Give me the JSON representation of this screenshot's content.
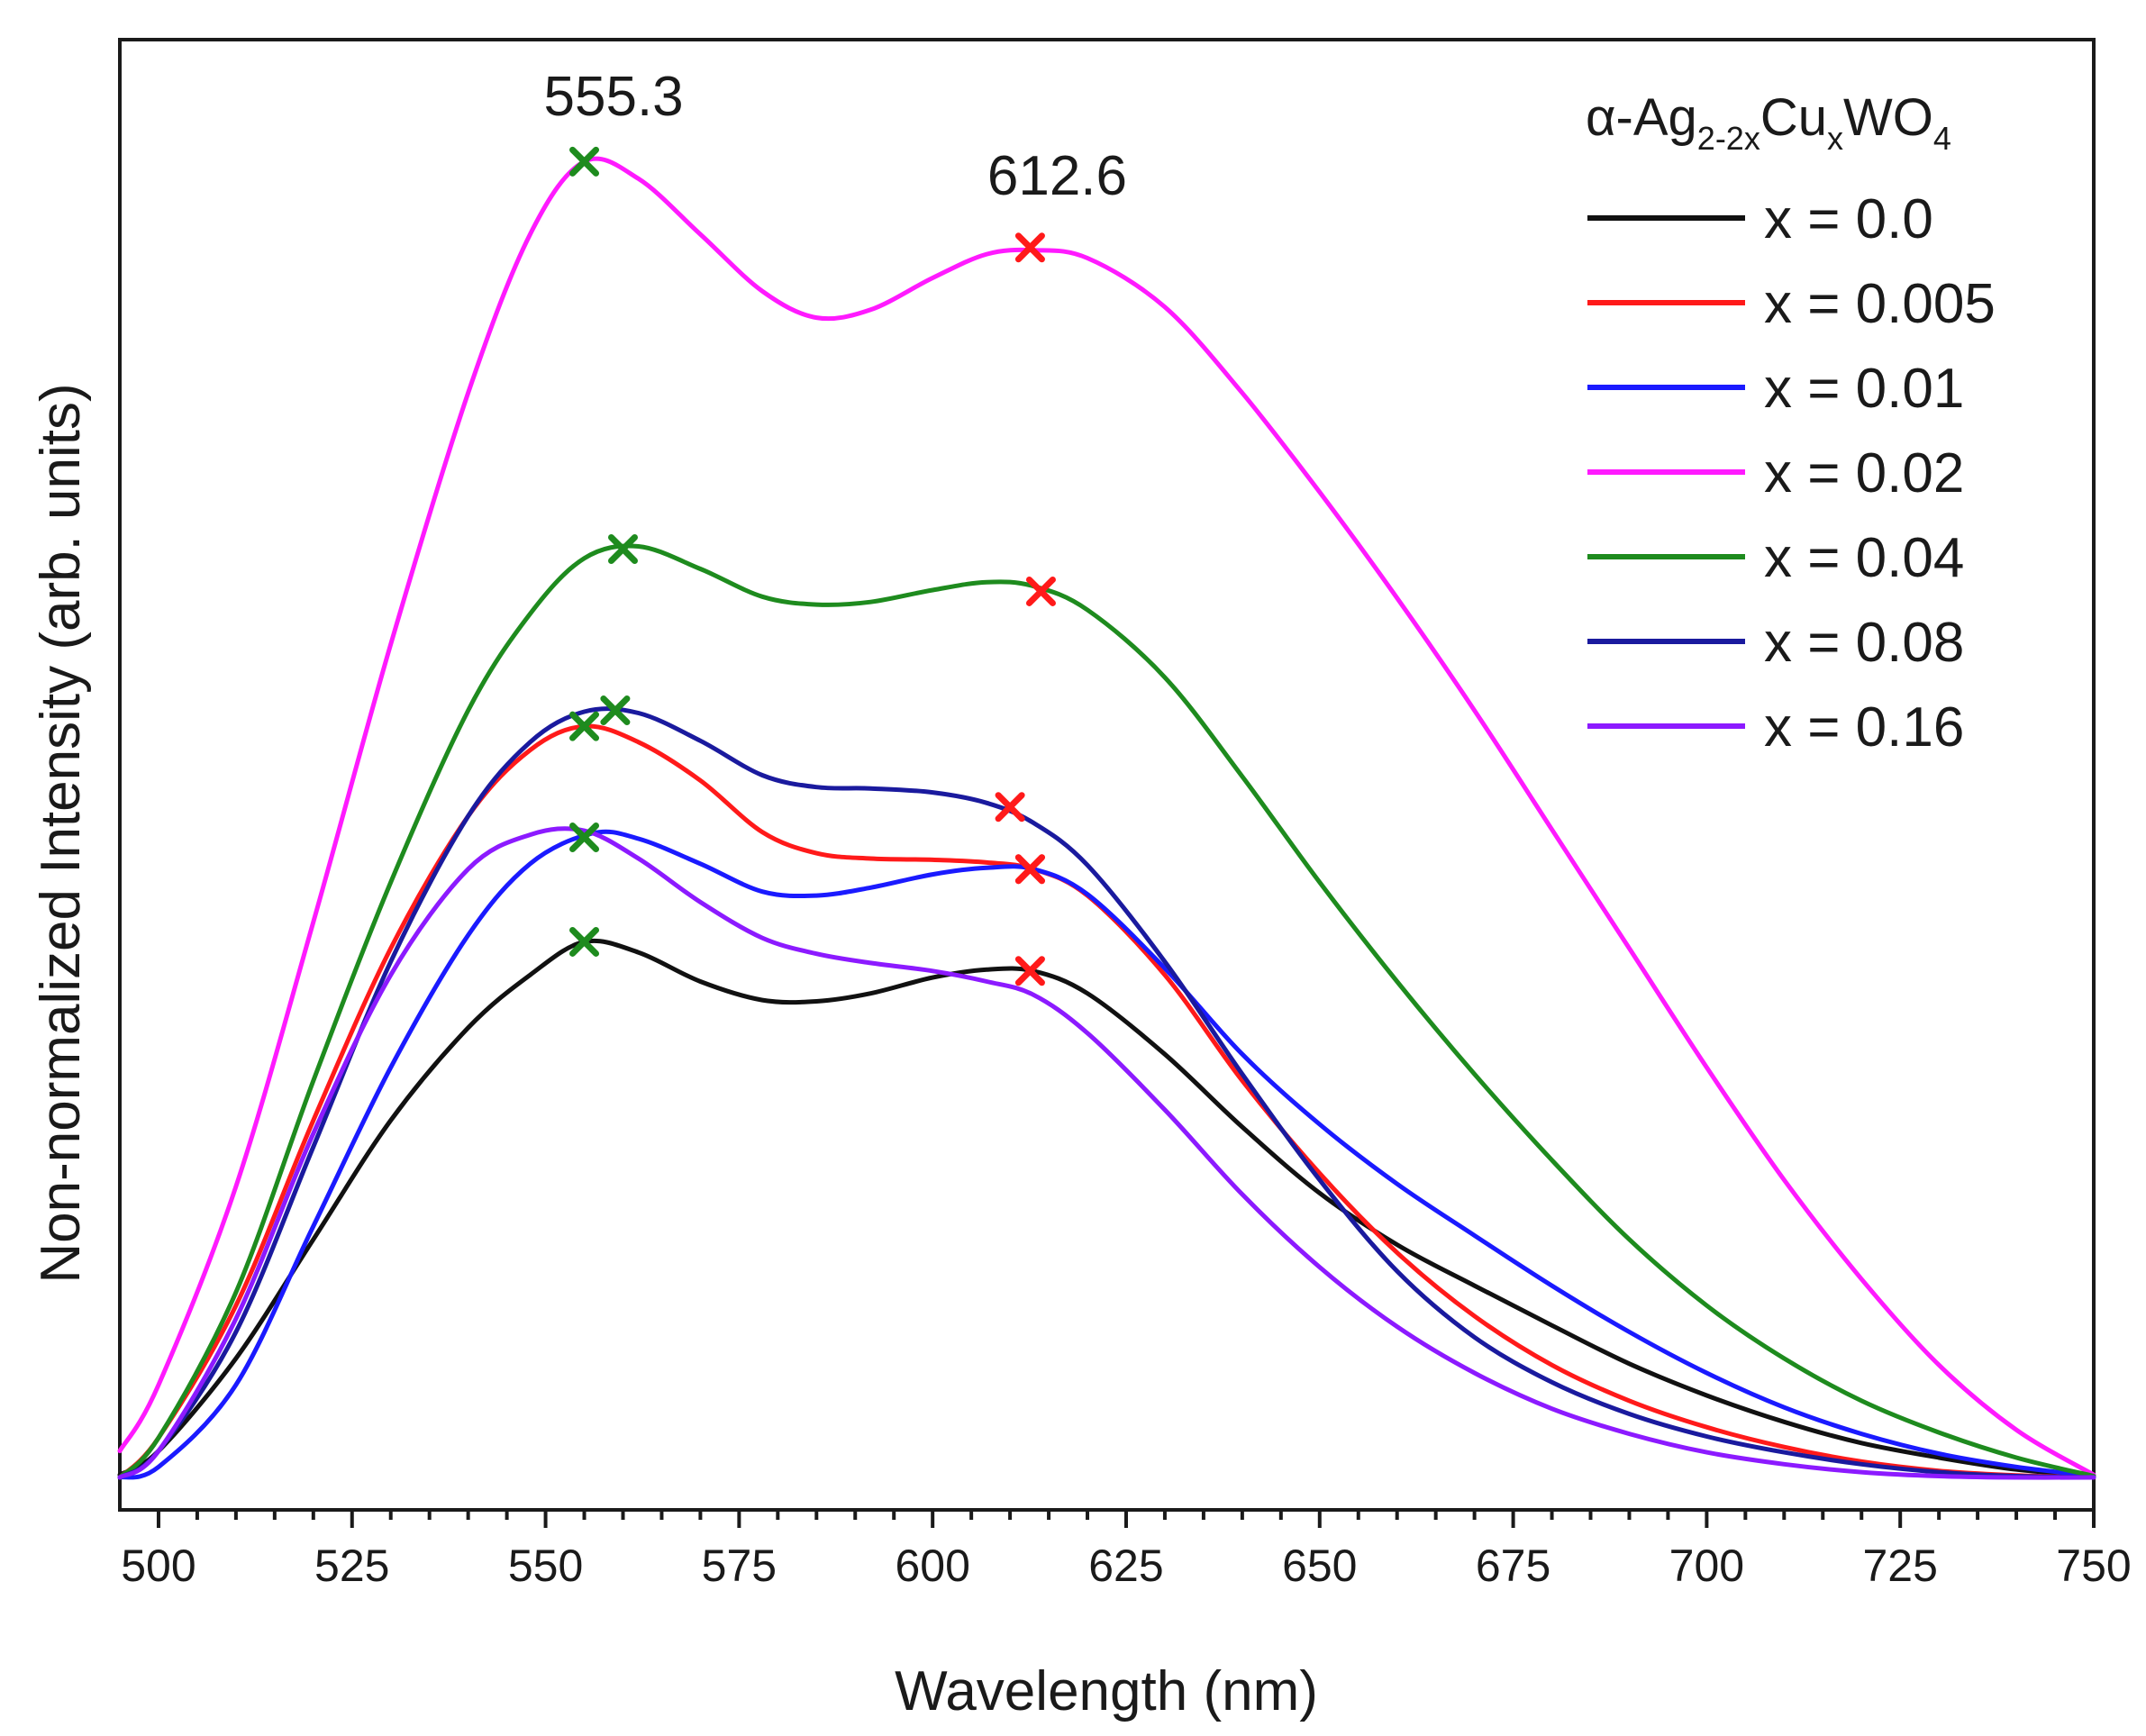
{
  "chart_data": {
    "type": "line",
    "title": "",
    "xlabel": "Wavelength (nm)",
    "ylabel": "Non-normalized Intensity (arb. units)",
    "xlim": [
      495,
      750
    ],
    "ylim": [
      0,
      100
    ],
    "xticks": [
      500,
      525,
      550,
      575,
      600,
      625,
      650,
      675,
      700,
      725,
      750
    ],
    "grid": false,
    "legend": {
      "position": "top-right",
      "title_prefix": "α-Ag",
      "title_sub1": "2-2x",
      "title_mid": "Cu",
      "title_sub2": "x",
      "title_suffix": "WO",
      "title_sub3": "4"
    },
    "annotations": [
      {
        "text": "555.3",
        "x": 555.3,
        "y": 100
      },
      {
        "text": "612.6",
        "x": 612.6,
        "y": 94
      }
    ],
    "marker_colors": {
      "first_peak": "#1e8b1e",
      "second_peak": "#ff1a1a"
    },
    "series": [
      {
        "name": "x = 0.0",
        "color": "#111111",
        "x": [
          495,
          500,
          510,
          520,
          530,
          540,
          548,
          555,
          562,
          570,
          578,
          585,
          592,
          600,
          607,
          613,
          620,
          630,
          640,
          650,
          660,
          670,
          680,
          690,
          700,
          710,
          720,
          730,
          740,
          750
        ],
        "y": [
          0.2,
          2,
          9,
          18,
          27,
          34,
          38,
          40.5,
          39.7,
          37.5,
          36.1,
          36.0,
          36.6,
          37.8,
          38.4,
          38.3,
          36.6,
          32,
          26.5,
          21.5,
          17.6,
          14.5,
          11.5,
          8.6,
          6.2,
          4.2,
          2.6,
          1.5,
          0.6,
          0.1
        ],
        "markers": [
          {
            "x": 555,
            "y": 40.5,
            "peak": "first"
          },
          {
            "x": 612.6,
            "y": 38.3,
            "peak": "second"
          }
        ]
      },
      {
        "name": "x = 0.005",
        "color": "#ff1a1a",
        "x": [
          495,
          500,
          510,
          520,
          530,
          540,
          548,
          555,
          562,
          570,
          578,
          585,
          592,
          600,
          607,
          613,
          620,
          630,
          640,
          650,
          660,
          670,
          680,
          690,
          700,
          710,
          720,
          730,
          740,
          750
        ],
        "y": [
          0,
          3,
          13,
          27,
          40,
          50,
          55,
          56.8,
          55.6,
          52.7,
          48.8,
          47.2,
          46.8,
          46.7,
          46.5,
          46,
          44,
          38,
          30,
          23,
          17,
          12.2,
          8.5,
          5.8,
          3.8,
          2.3,
          1.2,
          0.5,
          0.15,
          0
        ],
        "markers": [
          {
            "x": 555,
            "y": 56.8,
            "peak": "first"
          },
          {
            "x": 612.6,
            "y": 46.0,
            "peak": "second"
          }
        ]
      },
      {
        "name": "x = 0.01",
        "color": "#1a1aff",
        "x": [
          495,
          500,
          510,
          520,
          530,
          540,
          548,
          556,
          562,
          570,
          578,
          585,
          592,
          600,
          607,
          613,
          620,
          630,
          640,
          650,
          660,
          670,
          680,
          690,
          700,
          710,
          720,
          730,
          740,
          750
        ],
        "y": [
          0,
          0.8,
          7,
          19,
          31,
          41,
          46.4,
          48.7,
          48.3,
          46.4,
          44.3,
          44.0,
          44.6,
          45.6,
          46.1,
          46.0,
          44.1,
          38.5,
          32,
          26.7,
          22.2,
          18.3,
          14.5,
          11,
          7.9,
          5.3,
          3.3,
          1.8,
          0.8,
          0.1
        ],
        "markers": [
          {
            "x": 555,
            "y": 48.4,
            "peak": "first"
          },
          {
            "x": 612.6,
            "y": 46.0,
            "peak": "second"
          }
        ]
      },
      {
        "name": "x = 0.02",
        "color": "#ff1aff",
        "x": [
          495,
          500,
          510,
          520,
          530,
          540,
          548,
          555,
          562,
          570,
          578,
          585,
          592,
          600,
          607,
          613,
          620,
          630,
          640,
          650,
          660,
          670,
          680,
          690,
          700,
          710,
          720,
          730,
          740,
          750
        ],
        "y": [
          2,
          7,
          22,
          42,
          63,
          82,
          94,
          99.5,
          98.2,
          94,
          89.7,
          87.7,
          88.3,
          90.7,
          92.5,
          92.8,
          92.2,
          88.5,
          82,
          74.5,
          66.5,
          58,
          49,
          40,
          31,
          22.5,
          15,
          8.5,
          3.6,
          0.2
        ],
        "markers": [
          {
            "x": 555,
            "y": 99.5,
            "peak": "first"
          },
          {
            "x": 612.6,
            "y": 93.0,
            "peak": "second"
          }
        ]
      },
      {
        "name": "x = 0.04",
        "color": "#1e8b1e",
        "x": [
          495,
          500,
          510,
          520,
          530,
          540,
          548,
          555,
          562,
          570,
          578,
          585,
          592,
          600,
          607,
          613,
          620,
          630,
          640,
          650,
          660,
          670,
          680,
          690,
          700,
          710,
          720,
          730,
          740,
          750
        ],
        "y": [
          0,
          3,
          14,
          30,
          45,
          58,
          65.3,
          69.5,
          70.4,
          68.7,
          66.6,
          66.0,
          66.2,
          67.1,
          67.7,
          67.4,
          65.6,
          60.5,
          53,
          45,
          37.5,
          30.5,
          24,
          18,
          13,
          9,
          5.8,
          3.4,
          1.5,
          0.1
        ],
        "markers": [
          {
            "x": 560,
            "y": 70.2,
            "peak": "first"
          },
          {
            "x": 614,
            "y": 67.0,
            "peak": "second"
          }
        ]
      },
      {
        "name": "x = 0.08",
        "color": "#1a1a9e",
        "x": [
          495,
          500,
          510,
          520,
          530,
          540,
          548,
          555,
          562,
          570,
          578,
          585,
          592,
          600,
          607,
          613,
          620,
          630,
          640,
          650,
          660,
          670,
          680,
          690,
          700,
          710,
          720,
          730,
          740,
          750
        ],
        "y": [
          0,
          2,
          11,
          25,
          39,
          50,
          55.6,
          57.9,
          57.8,
          55.7,
          53.1,
          52.2,
          52.1,
          51.8,
          51.0,
          49.5,
          46.3,
          39,
          30.5,
          22.5,
          15.6,
          10.6,
          7.2,
          4.8,
          3.1,
          1.9,
          1.0,
          0.4,
          0.1,
          0
        ],
        "markers": [
          {
            "x": 559,
            "y": 58.0,
            "peak": "first"
          },
          {
            "x": 610,
            "y": 50.7,
            "peak": "second"
          }
        ]
      },
      {
        "name": "x = 0.16",
        "color": "#8c1aff",
        "x": [
          495,
          500,
          510,
          520,
          530,
          540,
          548,
          555,
          562,
          570,
          578,
          585,
          592,
          600,
          607,
          613,
          620,
          630,
          640,
          650,
          660,
          670,
          680,
          690,
          700,
          710,
          720,
          730,
          740,
          750
        ],
        "y": [
          0,
          2,
          12,
          26,
          38,
          46,
          48.6,
          48.9,
          46.8,
          43.5,
          40.8,
          39.6,
          38.9,
          38.3,
          37.5,
          36.5,
          33.6,
          27.8,
          21.4,
          15.9,
          11.4,
          7.9,
          5.2,
          3.3,
          1.9,
          1.0,
          0.4,
          0.1,
          0,
          0
        ],
        "markers": []
      }
    ]
  }
}
